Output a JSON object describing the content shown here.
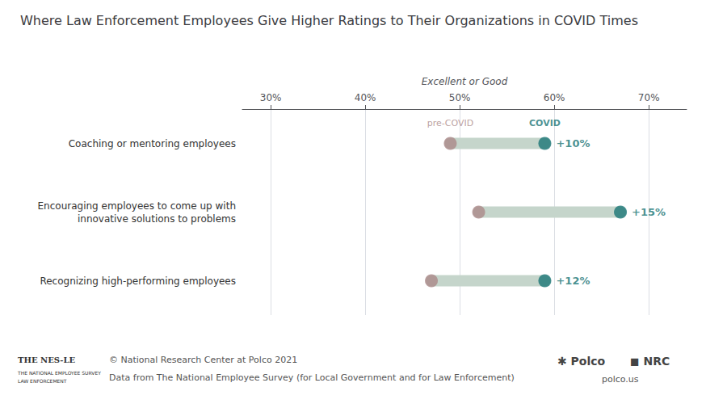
{
  "chart_data": {
    "type": "dumbbell",
    "title": "Where Law Enforcement Employees Give Higher Ratings to Their Organizations in COVID Times",
    "xlabel": "Excellent or Good",
    "categories": [
      "Coaching or mentoring employees",
      "Encouraging employees to come up with\ninnovative solutions to problems",
      "Recognizing high-performing employees"
    ],
    "series": [
      {
        "name": "pre-COVID",
        "color": "#aa8888",
        "values": [
          49,
          52,
          47
        ]
      },
      {
        "name": "COVID",
        "color": "#1a7575",
        "values": [
          59,
          67,
          59
        ]
      }
    ],
    "annotations": [
      "+10%",
      "+15%",
      "+12%"
    ],
    "color": "#c5d5cb",
    "xlim": [
      27,
      74
    ],
    "xticks": [
      {
        "value": 30,
        "label": "30%"
      },
      {
        "value": 40,
        "label": "40%"
      },
      {
        "value": 50,
        "label": "50%"
      },
      {
        "value": 60,
        "label": "60%"
      },
      {
        "value": 70,
        "label": "70%"
      }
    ],
    "grid": true,
    "footer": [
      "© National Research Center at Polco 2021",
      "Data from The National Employee Survey (for Local Government and for Law Enforcement)"
    ],
    "logo": [
      "THE NES-LE",
      "THE NATIONAL EMPLOYEE SURVEY",
      "LAW ENFORCEMENT"
    ],
    "credits": [
      "✱ Polco",
      "◼ NRC",
      "polco.us"
    ]
  }
}
